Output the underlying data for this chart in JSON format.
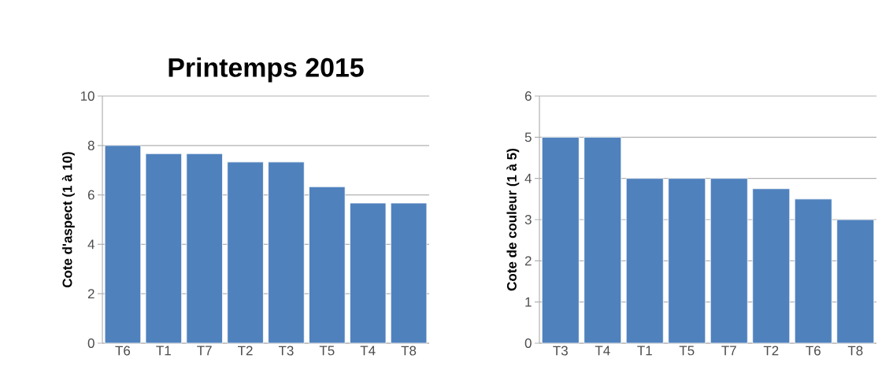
{
  "chart_data": [
    {
      "type": "bar",
      "title": "Printemps 2015",
      "ylabel": "Cote d'aspect (1 à 10)",
      "categories": [
        "T6",
        "T1",
        "T7",
        "T2",
        "T3",
        "T5",
        "T4",
        "T8"
      ],
      "values": [
        8,
        7.67,
        7.67,
        7.33,
        7.33,
        6.33,
        5.67,
        5.67
      ],
      "color": "#4f81bd",
      "ylim": [
        0,
        10
      ],
      "yticks": [
        0,
        2,
        4,
        6,
        8,
        10
      ],
      "grid": "y"
    },
    {
      "type": "bar",
      "ylabel": "Cote de couleur (1 à 5)",
      "categories": [
        "T3",
        "T4",
        "T1",
        "T5",
        "T7",
        "T2",
        "T6",
        "T8"
      ],
      "values": [
        5,
        5,
        4,
        4,
        4,
        3.75,
        3.5,
        3
      ],
      "color": "#4f81bd",
      "ylim": [
        0,
        6
      ],
      "yticks": [
        0,
        1,
        2,
        3,
        4,
        5,
        6
      ],
      "grid": "y"
    }
  ]
}
